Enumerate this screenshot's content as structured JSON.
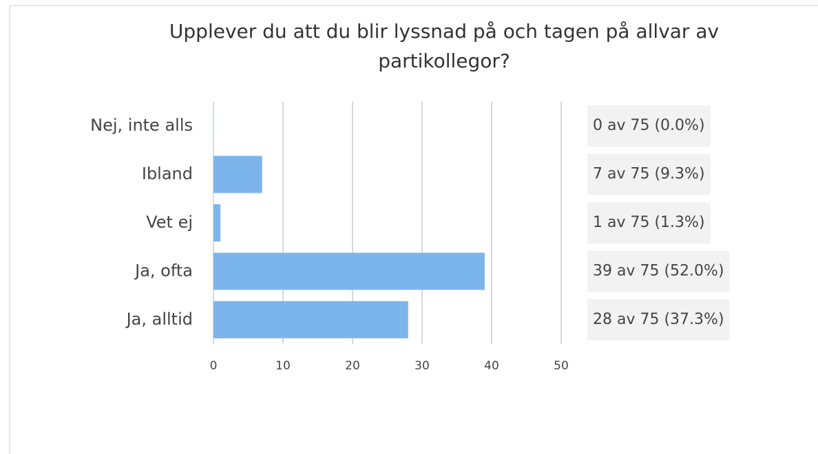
{
  "chart_data": {
    "type": "bar",
    "orientation": "horizontal",
    "title": "Upplever du att du blir lyssnad på och tagen på allvar av partikollegor?",
    "categories": [
      "Nej, inte alls",
      "Ibland",
      "Vet ej",
      "Ja, ofta",
      "Ja, alltid"
    ],
    "values": [
      0,
      7,
      1,
      39,
      28
    ],
    "value_labels": [
      "0 av 75 (0.0%)",
      "7 av 75 (9.3%)",
      "1 av 75 (1.3%)",
      "39 av 75 (52.0%)",
      "28 av 75 (37.3%)"
    ],
    "color": "#7cb5ec",
    "xlim": [
      0,
      50
    ],
    "xticks": [
      0,
      10,
      20,
      30,
      40,
      50
    ],
    "grid": true
  }
}
